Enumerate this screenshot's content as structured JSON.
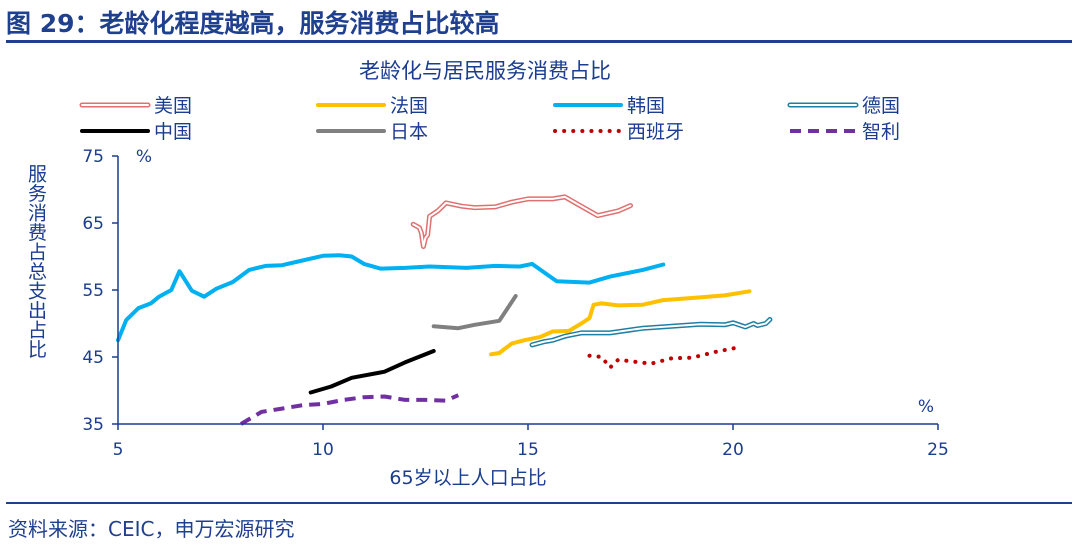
{
  "figure": {
    "title": "图 29：老龄化程度越高，服务消费占比较高",
    "source": "资料来源：CEIC，申万宏源研究"
  },
  "chart_data": {
    "type": "line",
    "title": "老龄化与居民服务消费占比",
    "xlabel": "65岁以上人口占比",
    "ylabel": "服务消费占总支出占比",
    "x_unit": "%",
    "y_unit": "%",
    "xlim": [
      5,
      25
    ],
    "ylim": [
      35,
      75
    ],
    "xticks": [
      5,
      10,
      15,
      20,
      25
    ],
    "yticks": [
      35,
      45,
      55,
      65,
      75
    ],
    "grid": false,
    "legend_position": "top",
    "series": [
      {
        "name": "美国",
        "color": "#e07070",
        "style": "double",
        "points": [
          [
            12.2,
            64.8
          ],
          [
            12.35,
            64.3
          ],
          [
            12.4,
            63.5
          ],
          [
            12.45,
            61.5
          ],
          [
            12.5,
            62.8
          ],
          [
            12.55,
            63.2
          ],
          [
            12.6,
            66.0
          ],
          [
            12.8,
            66.8
          ],
          [
            13.0,
            68.0
          ],
          [
            13.4,
            67.5
          ],
          [
            13.7,
            67.3
          ],
          [
            14.2,
            67.4
          ],
          [
            14.6,
            68.1
          ],
          [
            15.0,
            68.6
          ],
          [
            15.6,
            68.6
          ],
          [
            15.9,
            68.9
          ],
          [
            16.3,
            67.5
          ],
          [
            16.7,
            66.1
          ],
          [
            17.2,
            66.8
          ],
          [
            17.5,
            67.6
          ]
        ]
      },
      {
        "name": "法国",
        "color": "#ffc000",
        "style": "solid",
        "points": [
          [
            14.1,
            45.4
          ],
          [
            14.3,
            45.6
          ],
          [
            14.6,
            47.0
          ],
          [
            14.9,
            47.5
          ],
          [
            15.3,
            48.0
          ],
          [
            15.6,
            48.8
          ],
          [
            16.0,
            48.9
          ],
          [
            16.3,
            50.0
          ],
          [
            16.5,
            50.8
          ],
          [
            16.6,
            52.8
          ],
          [
            16.8,
            53.0
          ],
          [
            17.2,
            52.7
          ],
          [
            17.8,
            52.8
          ],
          [
            18.3,
            53.5
          ],
          [
            19.0,
            53.8
          ],
          [
            19.8,
            54.2
          ],
          [
            20.4,
            54.8
          ]
        ]
      },
      {
        "name": "韩国",
        "color": "#00b0f0",
        "style": "solid",
        "points": [
          [
            5.0,
            47.5
          ],
          [
            5.2,
            50.5
          ],
          [
            5.5,
            52.3
          ],
          [
            5.8,
            53.0
          ],
          [
            6.0,
            54.0
          ],
          [
            6.3,
            55.0
          ],
          [
            6.5,
            57.8
          ],
          [
            6.8,
            54.9
          ],
          [
            7.1,
            54.0
          ],
          [
            7.4,
            55.2
          ],
          [
            7.8,
            56.2
          ],
          [
            8.2,
            58.0
          ],
          [
            8.6,
            58.6
          ],
          [
            9.0,
            58.7
          ],
          [
            9.5,
            59.4
          ],
          [
            10.0,
            60.1
          ],
          [
            10.4,
            60.2
          ],
          [
            10.7,
            60.0
          ],
          [
            11.0,
            58.9
          ],
          [
            11.4,
            58.2
          ],
          [
            12.0,
            58.3
          ],
          [
            12.6,
            58.5
          ],
          [
            13.5,
            58.3
          ],
          [
            14.2,
            58.6
          ],
          [
            14.8,
            58.5
          ],
          [
            15.1,
            58.9
          ],
          [
            15.7,
            56.3
          ],
          [
            16.5,
            56.1
          ],
          [
            17.0,
            57.0
          ],
          [
            17.8,
            58.0
          ],
          [
            18.3,
            58.8
          ]
        ]
      },
      {
        "name": "德国",
        "color": "#1f7fa3",
        "style": "double",
        "points": [
          [
            15.1,
            46.8
          ],
          [
            15.4,
            47.3
          ],
          [
            15.6,
            47.5
          ],
          [
            15.9,
            48.1
          ],
          [
            16.3,
            48.6
          ],
          [
            17.0,
            48.6
          ],
          [
            17.8,
            49.3
          ],
          [
            18.5,
            49.6
          ],
          [
            19.2,
            49.9
          ],
          [
            19.8,
            49.8
          ],
          [
            20.0,
            50.1
          ],
          [
            20.3,
            49.5
          ],
          [
            20.5,
            50.0
          ],
          [
            20.6,
            49.7
          ],
          [
            20.8,
            50.0
          ],
          [
            20.9,
            50.6
          ]
        ]
      },
      {
        "name": "中国",
        "color": "#000000",
        "style": "solid",
        "points": [
          [
            9.7,
            39.7
          ],
          [
            10.2,
            40.6
          ],
          [
            10.7,
            41.9
          ],
          [
            11.5,
            42.8
          ],
          [
            12.0,
            44.2
          ],
          [
            12.7,
            45.9
          ]
        ]
      },
      {
        "name": "日本",
        "color": "#808080",
        "style": "solid",
        "points": [
          [
            12.7,
            49.6
          ],
          [
            13.3,
            49.3
          ],
          [
            13.7,
            49.8
          ],
          [
            14.3,
            50.4
          ],
          [
            14.7,
            54.1
          ]
        ]
      },
      {
        "name": "西班牙",
        "color": "#c00000",
        "style": "dotted",
        "points": [
          [
            16.5,
            45.2
          ],
          [
            16.8,
            45.0
          ],
          [
            17.0,
            43.4
          ],
          [
            17.2,
            44.6
          ],
          [
            17.6,
            44.3
          ],
          [
            18.0,
            44.0
          ],
          [
            18.5,
            44.8
          ],
          [
            19.0,
            44.9
          ],
          [
            19.6,
            45.8
          ],
          [
            20.2,
            46.5
          ]
        ]
      },
      {
        "name": "智利",
        "color": "#7030a0",
        "style": "dashed",
        "points": [
          [
            8.0,
            35.0
          ],
          [
            8.5,
            36.8
          ],
          [
            9.0,
            37.3
          ],
          [
            9.5,
            37.8
          ],
          [
            10.0,
            38.0
          ],
          [
            10.5,
            38.6
          ],
          [
            11.0,
            39.0
          ],
          [
            11.5,
            39.1
          ],
          [
            12.0,
            38.6
          ],
          [
            12.5,
            38.6
          ],
          [
            13.0,
            38.5
          ],
          [
            13.3,
            39.3
          ]
        ]
      }
    ]
  }
}
